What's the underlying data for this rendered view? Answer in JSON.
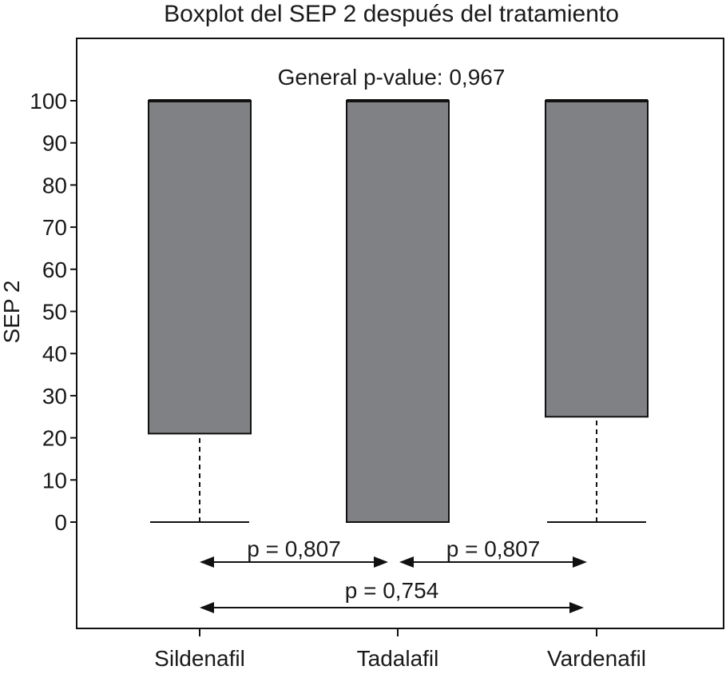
{
  "chart_data": {
    "type": "boxplot",
    "title": "Boxplot del SEP 2 después del tratamiento",
    "ylabel": "SEP 2",
    "xlabel": "",
    "ylim": [
      0,
      100
    ],
    "yticks": [
      0,
      10,
      20,
      30,
      40,
      50,
      60,
      70,
      80,
      90,
      100
    ],
    "categories": [
      "Sildenafil",
      "Tadalafil",
      "Vardenafil"
    ],
    "boxes": [
      {
        "category": "Sildenafil",
        "min": 0,
        "q1": 21,
        "median": 100,
        "q3": 100,
        "max": 100
      },
      {
        "category": "Tadalafil",
        "min": 0,
        "q1": 0,
        "median": 100,
        "q3": 100,
        "max": 100
      },
      {
        "category": "Vardenafil",
        "min": 0,
        "q1": 25,
        "median": 100,
        "q3": 100,
        "max": 100
      }
    ],
    "general_pvalue": "General p-value: 0,967",
    "comparisons": [
      {
        "from": "Sildenafil",
        "to": "Tadalafil",
        "label": "p = 0,807"
      },
      {
        "from": "Tadalafil",
        "to": "Vardenafil",
        "label": "p = 0,807"
      },
      {
        "from": "Sildenafil",
        "to": "Vardenafil",
        "label": "p = 0,754"
      }
    ],
    "grid": false,
    "colors": {
      "box_fill": "#808184",
      "line": "#111111"
    }
  }
}
